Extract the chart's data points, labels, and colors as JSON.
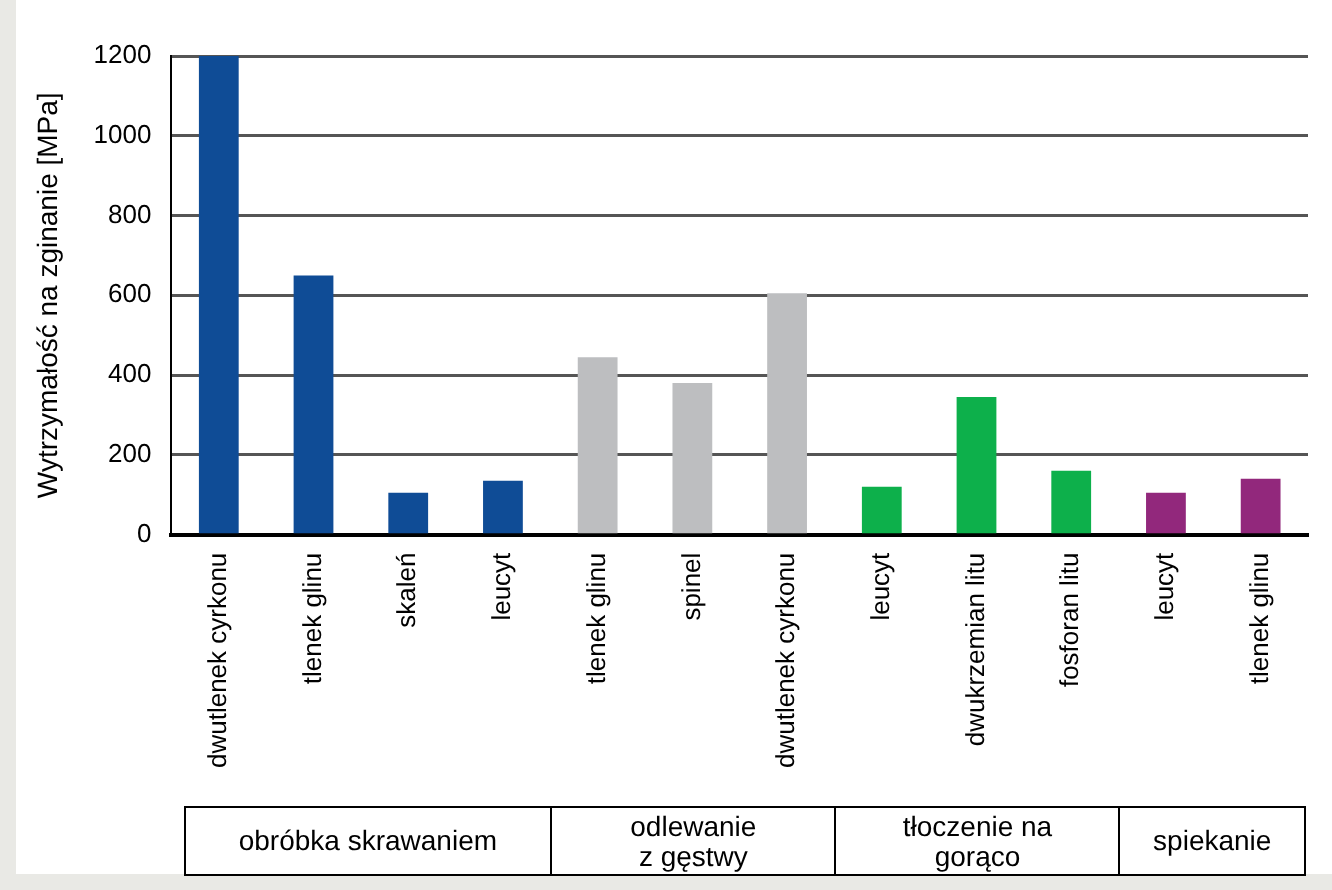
{
  "chart_data": {
    "type": "bar",
    "ylabel": "Wytrzymałość na zginanie [MPa]",
    "categories": [
      "dwutlenek cyrkonu",
      "tlenek glinu",
      "skaleń",
      "leucyt",
      "tlenek glinu",
      "spinel",
      "dwutlenek cyrkonu",
      "leucyt",
      "dwukrzemian litu",
      "fosforan litu",
      "leucyt",
      "tlenek glinu"
    ],
    "values": [
      1200,
      650,
      105,
      135,
      445,
      380,
      605,
      120,
      345,
      160,
      105,
      140
    ],
    "colors": [
      "#0f4c96",
      "#0f4c96",
      "#0f4c96",
      "#0f4c96",
      "#bdbec0",
      "#bdbec0",
      "#bdbec0",
      "#0db04b",
      "#0db04b",
      "#0db04b",
      "#92287c",
      "#92287c"
    ],
    "ylim": [
      0,
      1200
    ],
    "yticks": [
      0,
      200,
      400,
      600,
      800,
      1000,
      1200
    ],
    "grid": "y",
    "annotations": [
      "obróbka skrawaniem",
      "odlewanie\nz gęstwy",
      "tłoczenie na\ngorąco",
      "spiekanie"
    ]
  }
}
